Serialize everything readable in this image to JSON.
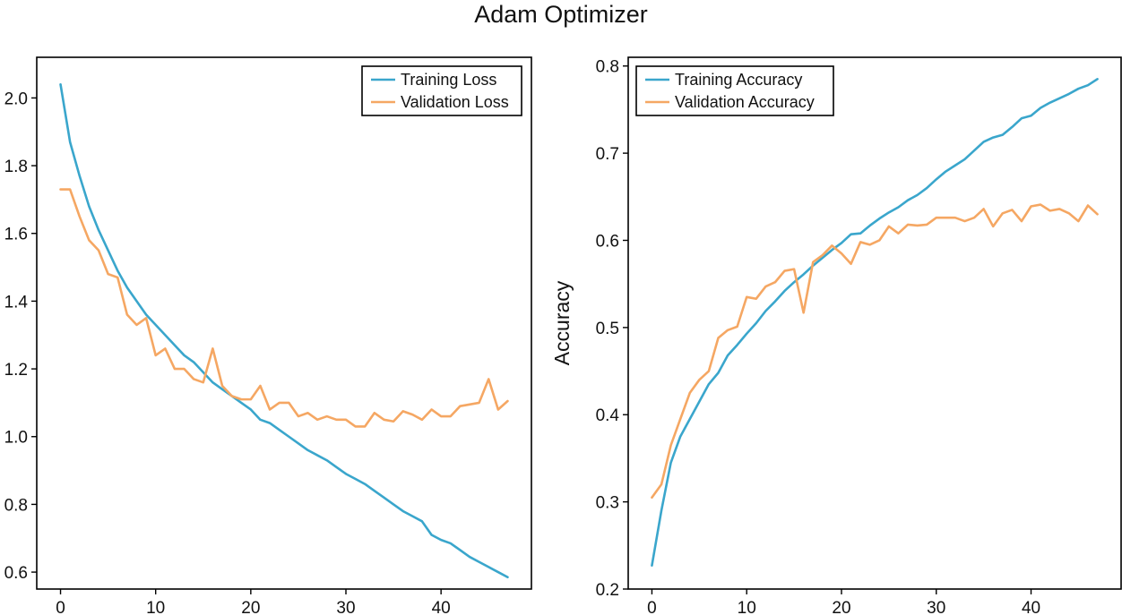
{
  "figure": {
    "title": "Adam Optimizer"
  },
  "chart_data": [
    {
      "type": "line",
      "title": "",
      "xlabel": "",
      "ylabel": "",
      "xlim": [
        -2.5,
        49.5
      ],
      "ylim": [
        0.55,
        2.12
      ],
      "xticks": [
        0,
        10,
        20,
        30,
        40
      ],
      "xtick_labels": [
        "0",
        "10",
        "20",
        "30",
        "40"
      ],
      "yticks": [
        0.6,
        0.8,
        1.0,
        1.2,
        1.4,
        1.6,
        1.8,
        2.0
      ],
      "ytick_labels": [
        "0.6",
        "0.8",
        "1.0",
        "1.2",
        "1.4",
        "1.6",
        "1.8",
        "2.0"
      ],
      "legend": "top-right",
      "grid": false,
      "x": [
        0,
        1,
        2,
        3,
        4,
        5,
        6,
        7,
        8,
        9,
        10,
        11,
        12,
        13,
        14,
        15,
        16,
        17,
        18,
        19,
        20,
        21,
        22,
        23,
        24,
        25,
        26,
        27,
        28,
        29,
        30,
        31,
        32,
        33,
        34,
        35,
        36,
        37,
        38,
        39,
        40,
        41,
        42,
        43,
        44,
        45,
        46,
        47
      ],
      "series": [
        {
          "name": "Training Loss",
          "color": "#3aa6cc",
          "values": [
            2.04,
            1.87,
            1.77,
            1.68,
            1.61,
            1.55,
            1.49,
            1.44,
            1.4,
            1.36,
            1.33,
            1.3,
            1.27,
            1.24,
            1.22,
            1.19,
            1.16,
            1.14,
            1.12,
            1.1,
            1.08,
            1.05,
            1.04,
            1.02,
            1.0,
            0.98,
            0.96,
            0.945,
            0.93,
            0.91,
            0.89,
            0.875,
            0.86,
            0.84,
            0.82,
            0.8,
            0.78,
            0.765,
            0.75,
            0.71,
            0.695,
            0.685,
            0.665,
            0.645,
            0.63,
            0.615,
            0.6,
            0.585
          ]
        },
        {
          "name": "Validation Loss",
          "color": "#f5a763",
          "values": [
            1.73,
            1.73,
            1.65,
            1.58,
            1.55,
            1.48,
            1.47,
            1.36,
            1.33,
            1.35,
            1.24,
            1.26,
            1.2,
            1.2,
            1.17,
            1.16,
            1.26,
            1.15,
            1.12,
            1.11,
            1.11,
            1.15,
            1.08,
            1.1,
            1.1,
            1.06,
            1.07,
            1.05,
            1.06,
            1.05,
            1.05,
            1.03,
            1.03,
            1.07,
            1.05,
            1.045,
            1.075,
            1.065,
            1.05,
            1.08,
            1.06,
            1.06,
            1.09,
            1.095,
            1.1,
            1.17,
            1.08,
            1.105
          ]
        }
      ]
    },
    {
      "type": "line",
      "title": "",
      "xlabel": "",
      "ylabel": "Accuracy",
      "xlim": [
        -2.5,
        49.5
      ],
      "ylim": [
        0.2,
        0.81
      ],
      "xticks": [
        0,
        10,
        20,
        30,
        40
      ],
      "xtick_labels": [
        "0",
        "10",
        "20",
        "30",
        "40"
      ],
      "yticks": [
        0.2,
        0.3,
        0.4,
        0.5,
        0.6,
        0.7,
        0.8
      ],
      "ytick_labels": [
        "0.2",
        "0.3",
        "0.4",
        "0.5",
        "0.6",
        "0.7",
        "0.8"
      ],
      "legend": "top-left",
      "grid": false,
      "x": [
        0,
        1,
        2,
        3,
        4,
        5,
        6,
        7,
        8,
        9,
        10,
        11,
        12,
        13,
        14,
        15,
        16,
        17,
        18,
        19,
        20,
        21,
        22,
        23,
        24,
        25,
        26,
        27,
        28,
        29,
        30,
        31,
        32,
        33,
        34,
        35,
        36,
        37,
        38,
        39,
        40,
        41,
        42,
        43,
        44,
        45,
        46,
        47
      ],
      "series": [
        {
          "name": "Training Accuracy",
          "color": "#3aa6cc",
          "values": [
            0.227,
            0.29,
            0.345,
            0.375,
            0.395,
            0.415,
            0.435,
            0.448,
            0.468,
            0.48,
            0.493,
            0.505,
            0.519,
            0.53,
            0.542,
            0.552,
            0.561,
            0.571,
            0.58,
            0.589,
            0.597,
            0.607,
            0.608,
            0.617,
            0.625,
            0.632,
            0.638,
            0.646,
            0.652,
            0.66,
            0.67,
            0.679,
            0.686,
            0.693,
            0.703,
            0.713,
            0.718,
            0.721,
            0.73,
            0.74,
            0.743,
            0.752,
            0.758,
            0.763,
            0.768,
            0.774,
            0.778,
            0.785
          ]
        },
        {
          "name": "Validation Accuracy",
          "color": "#f5a763",
          "values": [
            0.305,
            0.32,
            0.365,
            0.395,
            0.425,
            0.44,
            0.45,
            0.488,
            0.497,
            0.501,
            0.535,
            0.533,
            0.547,
            0.552,
            0.565,
            0.567,
            0.517,
            0.575,
            0.583,
            0.594,
            0.585,
            0.573,
            0.598,
            0.595,
            0.6,
            0.616,
            0.608,
            0.618,
            0.617,
            0.618,
            0.626,
            0.626,
            0.626,
            0.622,
            0.626,
            0.636,
            0.616,
            0.631,
            0.635,
            0.622,
            0.639,
            0.641,
            0.634,
            0.636,
            0.631,
            0.622,
            0.64,
            0.63
          ]
        }
      ]
    }
  ]
}
